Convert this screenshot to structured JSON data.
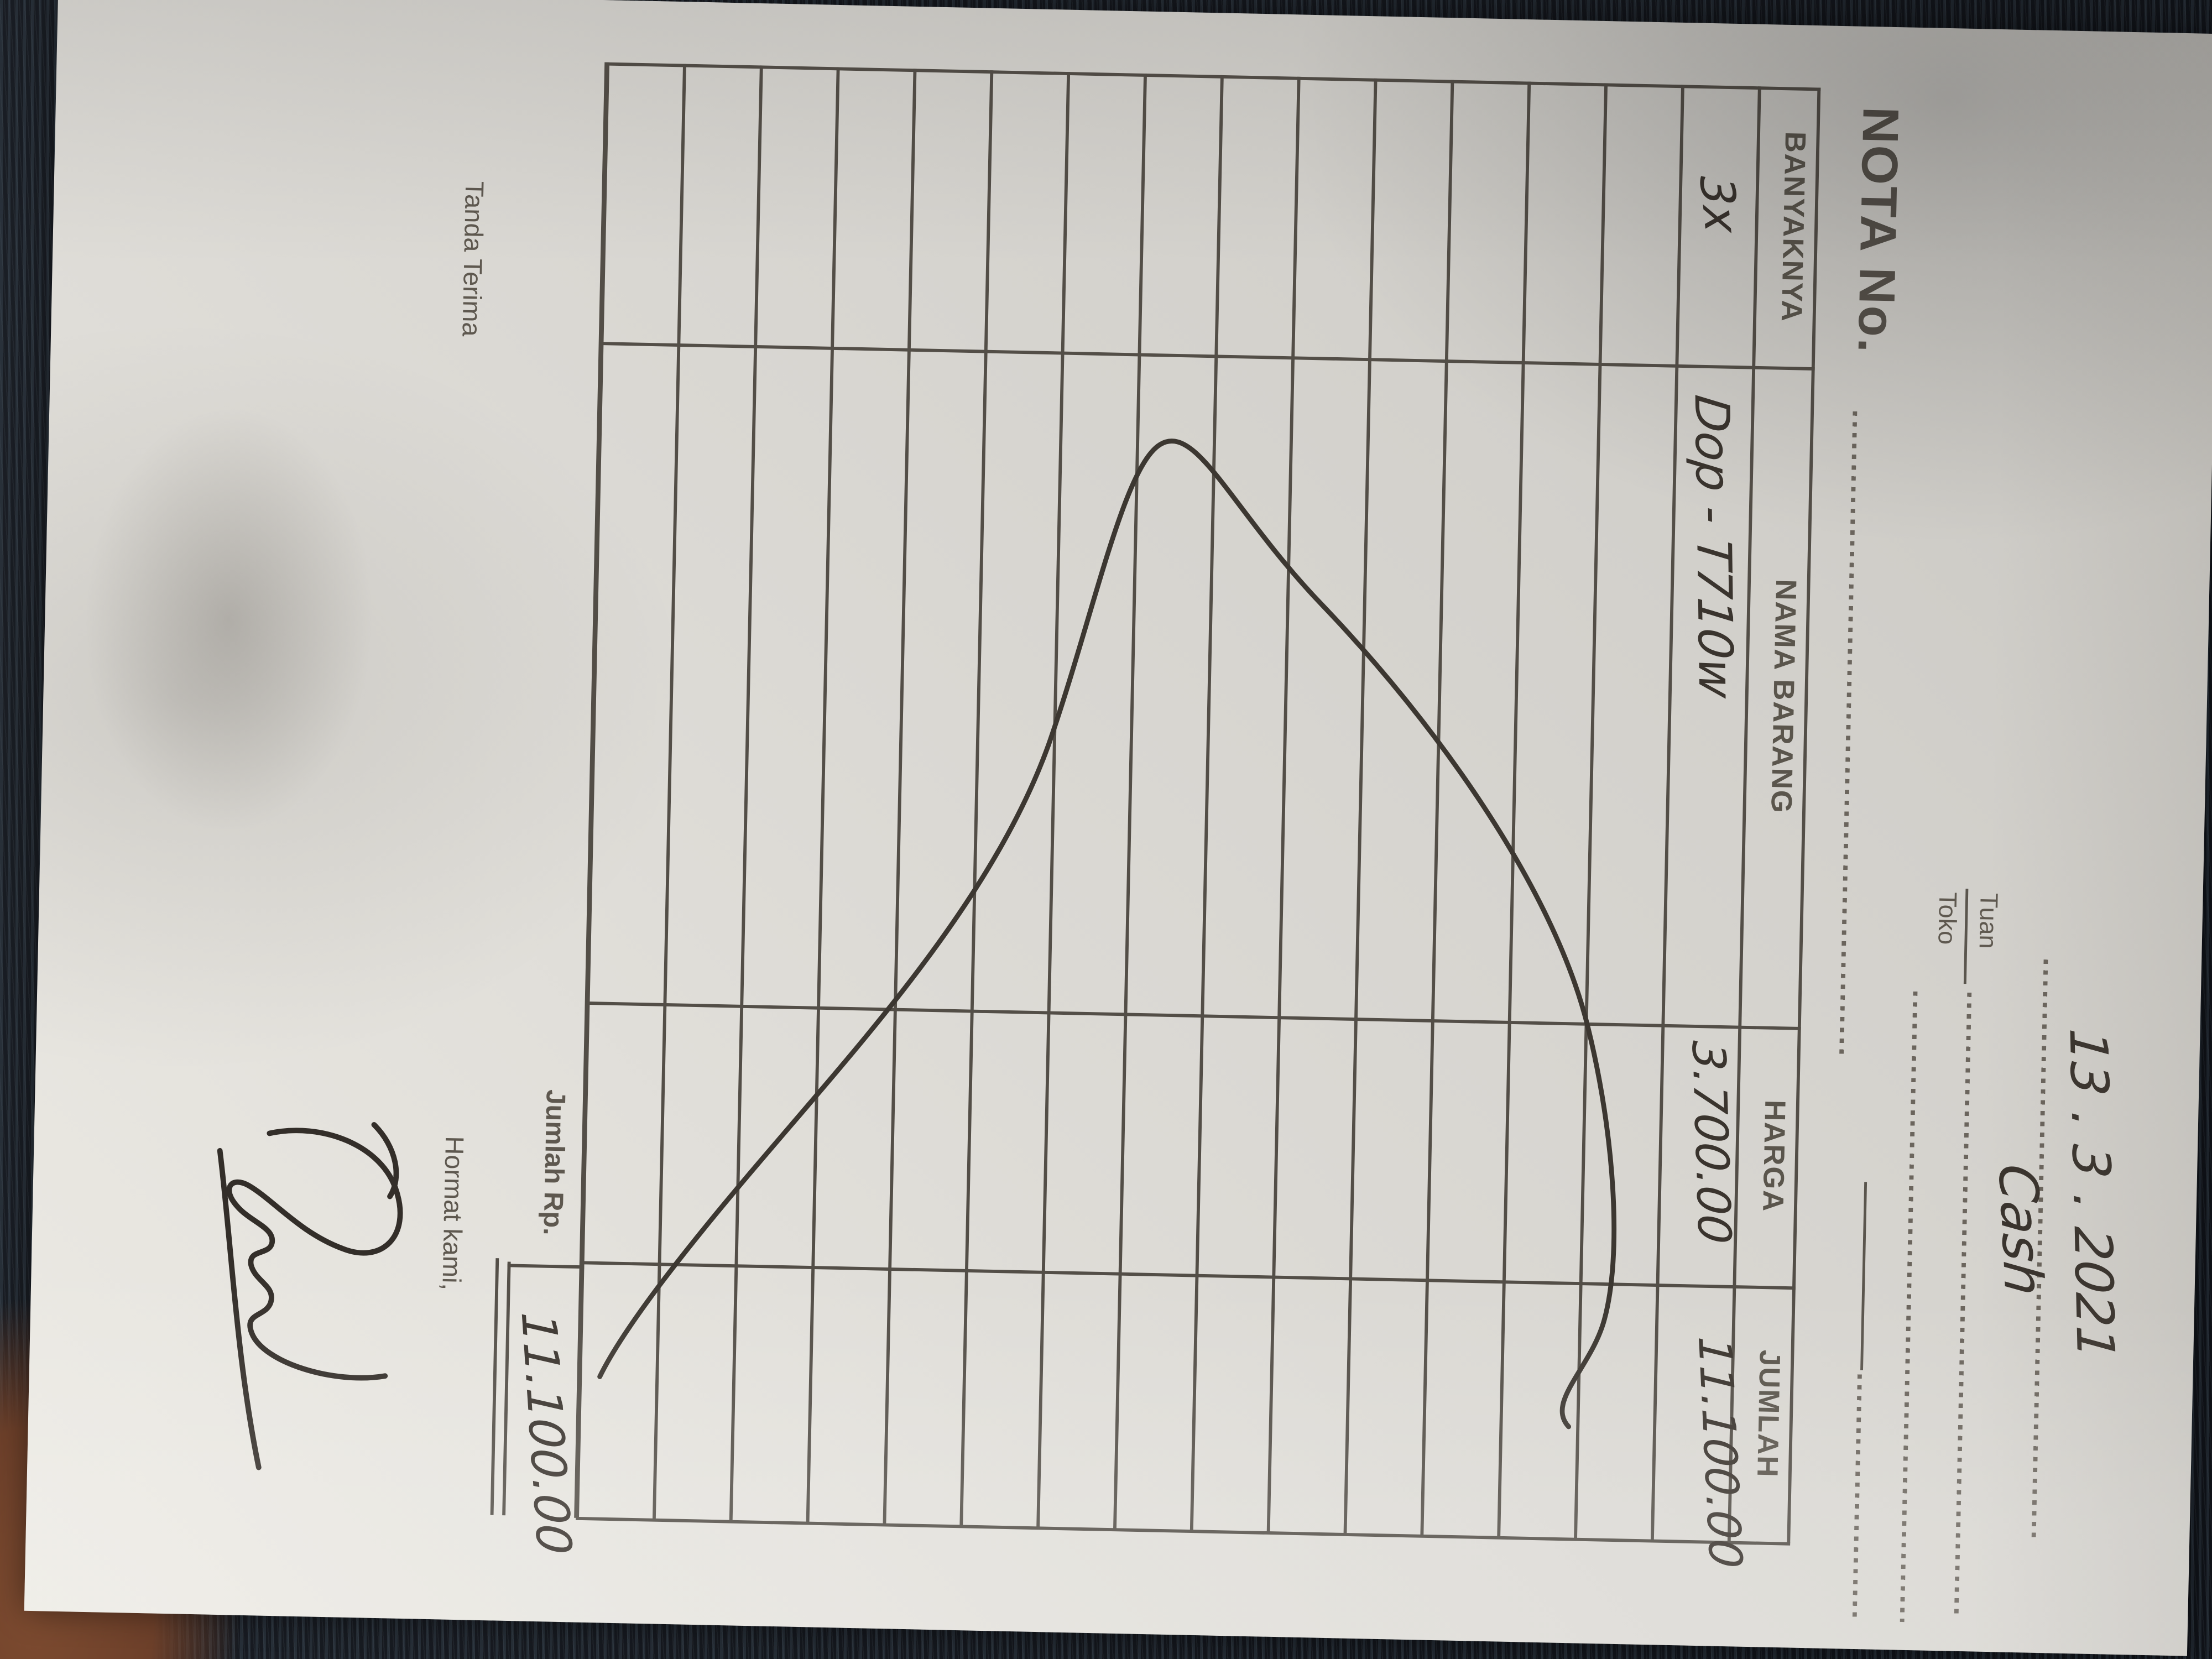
{
  "receipt": {
    "title_label": "NOTA No.",
    "date_value": "13 .  3 .  2021",
    "tuan_label": "Tuan",
    "toko_label": "Toko",
    "payment_value": "Cash",
    "table": {
      "headers": [
        "BANYAKNYA",
        "NAMA BARANG",
        "HARGA",
        "JUMLAH"
      ],
      "row_count": 15,
      "rows": [
        {
          "qty": "3x",
          "item": "Dop - T710w",
          "price": "3.700.00",
          "amount": "11.100.00"
        }
      ],
      "total_label": "Jumlah Rp.",
      "total_value": "11.100.00"
    },
    "footer": {
      "left_label": "Tanda Terima",
      "right_label": "Hormat kami,"
    }
  },
  "colors": {
    "paper": "#d9d7d2",
    "line_ink": "#534e47",
    "dot_ink": "#6b655d",
    "print_ink": "#5e584f",
    "pen_ink": "#3a342e",
    "fabric": "#161a21",
    "fabric_rib": "#3d4754",
    "table_wood": "#7d4b30"
  }
}
